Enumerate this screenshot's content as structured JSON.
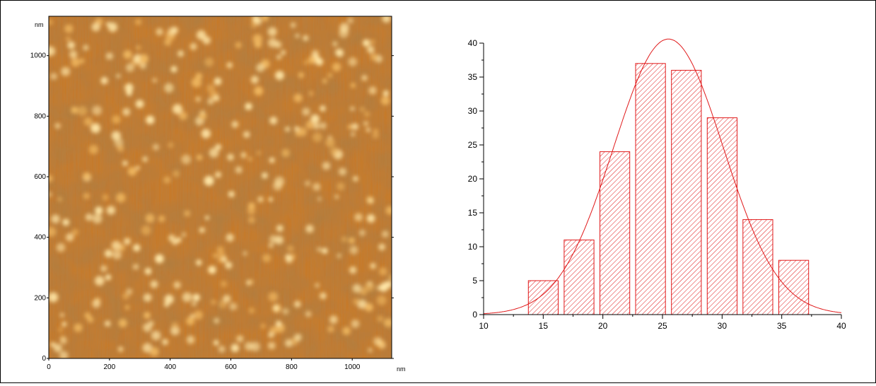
{
  "chart_data": [
    {
      "type": "heatmap",
      "title": "",
      "xlabel": "",
      "ylabel": "",
      "unit_y": "nm",
      "unit_x": "nm",
      "x_ticks": [
        "0",
        "200",
        "400",
        "600",
        "800",
        "1000"
      ],
      "y_ticks": [
        "0",
        "200",
        "400",
        "600",
        "800",
        "1000"
      ],
      "xlim": [
        0,
        1130
      ],
      "ylim": [
        0,
        1130
      ],
      "colors": {
        "low": "#7a3b12",
        "mid": "#c9782a",
        "high": "#ffe7a8",
        "frame": "#000000"
      }
    },
    {
      "type": "bar",
      "title": "",
      "xlabel": "",
      "ylabel": "",
      "x_ticks": [
        "10",
        "15",
        "20",
        "25",
        "30",
        "35",
        "40"
      ],
      "y_ticks": [
        "0",
        "5",
        "10",
        "15",
        "20",
        "25",
        "30",
        "35",
        "40"
      ],
      "xlim": [
        10,
        40
      ],
      "ylim": [
        0,
        40
      ],
      "bar_width": 2.5,
      "bars": [
        {
          "x": 15.0,
          "value": 5
        },
        {
          "x": 18.0,
          "value": 11
        },
        {
          "x": 21.0,
          "value": 24
        },
        {
          "x": 24.0,
          "value": 37
        },
        {
          "x": 27.0,
          "value": 36
        },
        {
          "x": 30.0,
          "value": 29
        },
        {
          "x": 33.0,
          "value": 14
        },
        {
          "x": 36.0,
          "value": 8
        }
      ],
      "fit": {
        "type": "gaussian",
        "amplitude": 40.6,
        "center": 25.5,
        "sigma": 4.6
      },
      "colors": {
        "bar": "#e0191a",
        "fit": "#e0191a",
        "axis": "#000000"
      },
      "hatch": "diagonal",
      "grid": false,
      "legend": "none"
    }
  ]
}
